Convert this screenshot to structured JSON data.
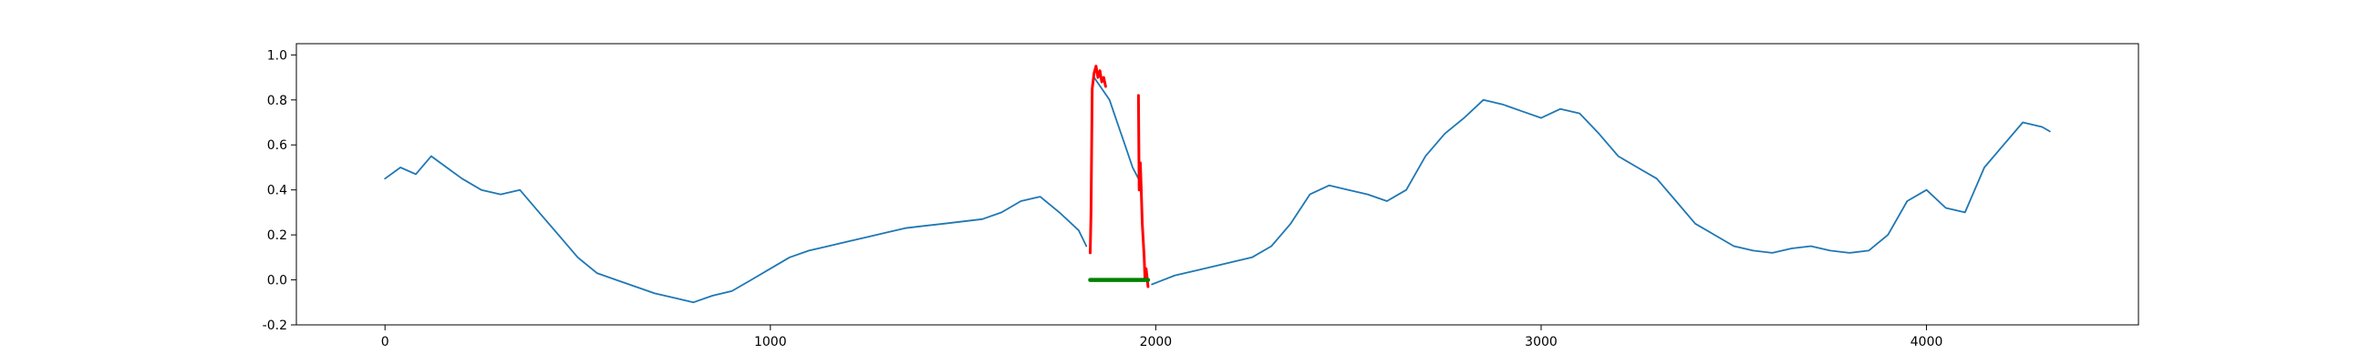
{
  "chart_data": {
    "type": "line",
    "title": "",
    "xlabel": "",
    "ylabel": "",
    "xlim": [
      -230,
      4550
    ],
    "ylim": [
      -0.2,
      1.05
    ],
    "xticks": [
      0,
      1000,
      2000,
      3000,
      4000
    ],
    "yticks": [
      -0.2,
      0.0,
      0.2,
      0.4,
      0.6,
      0.8,
      1.0
    ],
    "grid": false,
    "legend": "none",
    "series": [
      {
        "color": "#1f77b4",
        "x": [
          0,
          40,
          80,
          120,
          160,
          200,
          250,
          300,
          350,
          400,
          450,
          500,
          550,
          600,
          650,
          700,
          750,
          800,
          850,
          900,
          950,
          1000,
          1050,
          1100,
          1150,
          1200,
          1250,
          1300,
          1350,
          1400,
          1450,
          1500,
          1550,
          1600,
          1650,
          1700,
          1750,
          1800,
          1820
        ],
        "y": [
          0.45,
          0.5,
          0.47,
          0.55,
          0.5,
          0.45,
          0.4,
          0.38,
          0.4,
          0.3,
          0.2,
          0.1,
          0.03,
          0.0,
          -0.03,
          -0.06,
          -0.08,
          -0.1,
          -0.07,
          -0.05,
          0.0,
          0.05,
          0.1,
          0.13,
          0.15,
          0.17,
          0.19,
          0.21,
          0.23,
          0.24,
          0.25,
          0.26,
          0.27,
          0.3,
          0.35,
          0.37,
          0.3,
          0.22,
          0.15
        ]
      },
      {
        "color": "#1f77b4",
        "x": [
          1840,
          1860,
          1880,
          1900,
          1920,
          1940,
          1955
        ],
        "y": [
          0.9,
          0.85,
          0.8,
          0.7,
          0.6,
          0.5,
          0.45
        ]
      },
      {
        "color": "#1f77b4",
        "x": [
          1990,
          2050,
          2100,
          2150,
          2200,
          2250,
          2300,
          2350,
          2400,
          2450,
          2500,
          2550,
          2600,
          2650,
          2700,
          2750,
          2800,
          2850,
          2900,
          2950,
          3000,
          3050,
          3100,
          3150,
          3200,
          3250,
          3300,
          3350,
          3400,
          3450,
          3500,
          3550,
          3600,
          3650,
          3700,
          3750,
          3800,
          3850,
          3900,
          3950,
          4000,
          4050,
          4100,
          4150,
          4200,
          4250,
          4300,
          4320
        ],
        "y": [
          -0.02,
          0.02,
          0.04,
          0.06,
          0.08,
          0.1,
          0.15,
          0.25,
          0.38,
          0.42,
          0.4,
          0.38,
          0.35,
          0.4,
          0.55,
          0.65,
          0.72,
          0.8,
          0.78,
          0.75,
          0.72,
          0.76,
          0.74,
          0.65,
          0.55,
          0.5,
          0.45,
          0.35,
          0.25,
          0.2,
          0.15,
          0.13,
          0.12,
          0.14,
          0.15,
          0.13,
          0.12,
          0.13,
          0.2,
          0.35,
          0.4,
          0.32,
          0.3,
          0.5,
          0.6,
          0.7,
          0.68,
          0.66
        ]
      },
      {
        "color": "#ff0000",
        "x": [
          1830,
          1832,
          1835,
          1840,
          1845,
          1850,
          1855,
          1860,
          1865,
          1870
        ],
        "y": [
          0.12,
          0.3,
          0.85,
          0.92,
          0.95,
          0.9,
          0.93,
          0.88,
          0.9,
          0.86
        ]
      },
      {
        "color": "#ff0000",
        "x": [
          1955,
          1957,
          1960,
          1962,
          1965,
          1970,
          1972,
          1975,
          1980
        ],
        "y": [
          0.82,
          0.4,
          0.52,
          0.42,
          0.25,
          0.1,
          0.0,
          0.05,
          -0.03
        ]
      },
      {
        "color": "#008000",
        "x": [
          1830,
          1980
        ],
        "y": [
          0.0,
          0.0
        ]
      }
    ]
  }
}
